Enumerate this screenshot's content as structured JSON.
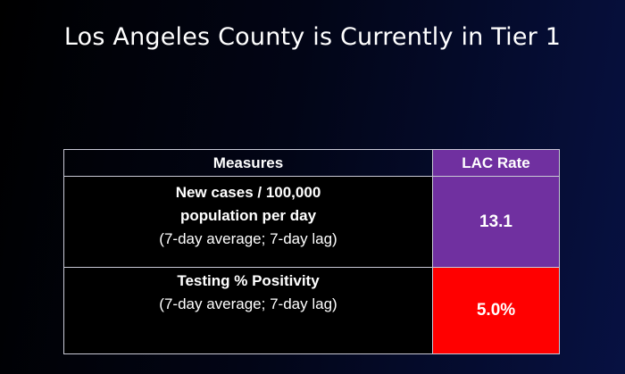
{
  "title": "Los Angeles County is Currently in Tier 1",
  "table": {
    "headers": {
      "measures": "Measures",
      "rate": "LAC Rate"
    },
    "rows": [
      {
        "bold_lines": [
          "New cases / 100,000",
          "population per day"
        ],
        "note": "(7-day average; 7-day lag)",
        "value": "13.1",
        "color": "#7030a0"
      },
      {
        "bold_lines": [
          "Testing % Positivity"
        ],
        "note": "(7-day average; 7-day lag)",
        "value": "5.0%",
        "color": "#ff0000"
      }
    ]
  }
}
